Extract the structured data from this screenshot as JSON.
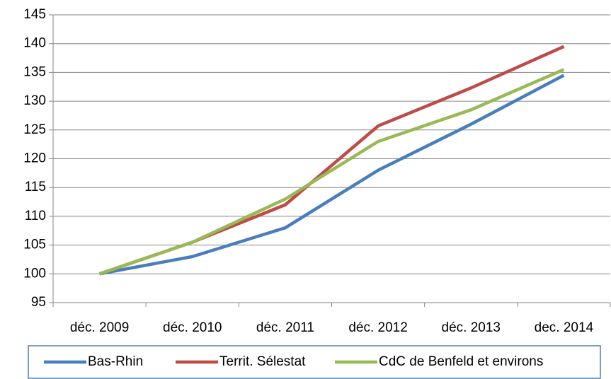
{
  "chart_data": {
    "type": "line",
    "categories": [
      "déc. 2009",
      "déc. 2010",
      "déc. 2011",
      "déc. 2012",
      "déc. 2013",
      "dec. 2014"
    ],
    "series": [
      {
        "name": "Bas-Rhin",
        "color": "#4a7ebb",
        "values": [
          100,
          103,
          108,
          118,
          126,
          134.5
        ]
      },
      {
        "name": "Territ. Sélestat",
        "color": "#be4b48",
        "values": [
          100,
          105.5,
          112,
          125.7,
          132.3,
          139.5
        ]
      },
      {
        "name": "CdC de Benfeld et environs",
        "color": "#98b954",
        "values": [
          100,
          105.5,
          113,
          123,
          128.5,
          135.5
        ]
      }
    ],
    "ylim": [
      95,
      145
    ],
    "yticks": [
      95,
      100,
      105,
      110,
      115,
      120,
      125,
      130,
      135,
      140,
      145
    ],
    "grid": true,
    "legend": "bottom"
  }
}
